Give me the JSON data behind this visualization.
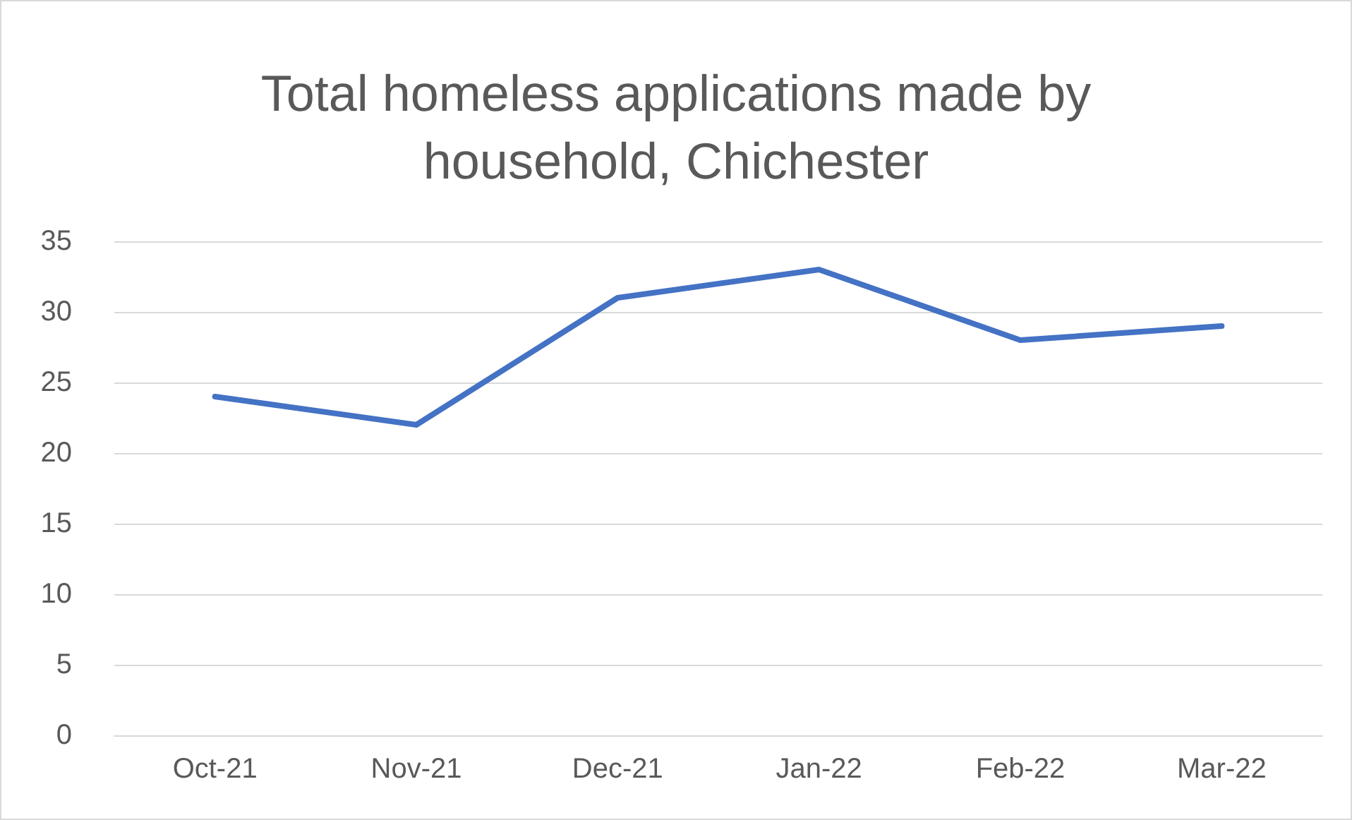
{
  "chart_data": {
    "type": "line",
    "title": "Total homeless applications made by\nhousehold, Chichester",
    "categories": [
      "Oct-21",
      "Nov-21",
      "Dec-21",
      "Jan-22",
      "Feb-22",
      "Mar-22"
    ],
    "series": [
      {
        "color": "#4472c4",
        "values": [
          24,
          22,
          31,
          33,
          28,
          29
        ]
      }
    ],
    "ylim": [
      0,
      35
    ],
    "yticks": [
      0,
      5,
      10,
      15,
      20,
      25,
      30,
      35
    ],
    "grid": "y",
    "marker": "none",
    "line_style": "solid"
  }
}
